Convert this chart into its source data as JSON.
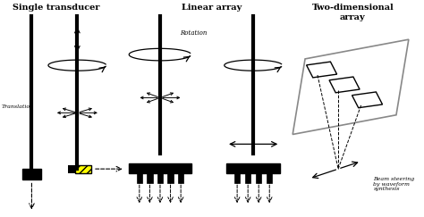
{
  "bg_color": "#ffffff",
  "title1": "Single transducer",
  "title2": "Linear array",
  "title3": "Two-dimensional\narray",
  "label_translation": "Translation",
  "label_rotation": "Rotation",
  "label_beam": "Beam steering\nby waveform\nsynthesis",
  "fig_width": 4.74,
  "fig_height": 2.43,
  "dpi": 100
}
